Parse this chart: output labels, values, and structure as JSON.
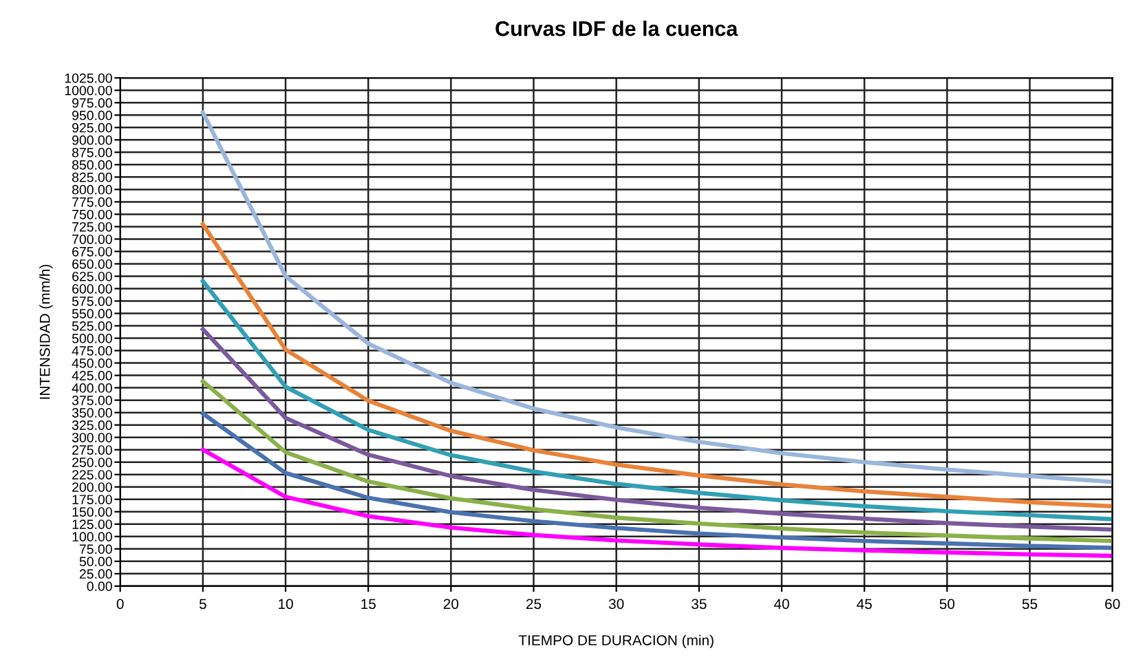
{
  "chart_data": {
    "type": "line",
    "title": "Curvas IDF de la cuenca",
    "xlabel": "TIEMPO DE DURACION (min)",
    "ylabel": "INTENSIDAD (mm/h)",
    "x": [
      5,
      10,
      15,
      20,
      25,
      30,
      35,
      40,
      45,
      50,
      55,
      60
    ],
    "series": [
      {
        "color": "#9bb5dc",
        "values": [
          955,
          625,
          489,
          410,
          358,
          320,
          291,
          268,
          250,
          235,
          222,
          210
        ]
      },
      {
        "color": "#e8833a",
        "values": [
          730,
          477,
          374,
          313,
          274,
          245,
          223,
          205,
          191,
          180,
          169,
          161
        ]
      },
      {
        "color": "#31a0b4",
        "values": [
          615,
          402,
          315,
          264,
          231,
          206,
          188,
          173,
          161,
          151,
          143,
          135
        ]
      },
      {
        "color": "#7a5a9c",
        "values": [
          518,
          339,
          265,
          222,
          194,
          174,
          158,
          146,
          136,
          127,
          120,
          114
        ]
      },
      {
        "color": "#8cb04a",
        "values": [
          413,
          270,
          211,
          177,
          155,
          138,
          126,
          116,
          108,
          102,
          96,
          91
        ]
      },
      {
        "color": "#4a72b0",
        "values": [
          348,
          228,
          178,
          149,
          131,
          117,
          106,
          98,
          91,
          86,
          81,
          77
        ]
      },
      {
        "color": "#ff00ff",
        "values": [
          275,
          180,
          141,
          118,
          103,
          92,
          84,
          77,
          72,
          68,
          64,
          61
        ]
      }
    ],
    "xlim": [
      0,
      60
    ],
    "xticks": [
      0,
      5,
      10,
      15,
      20,
      25,
      30,
      35,
      40,
      45,
      50,
      55,
      60
    ],
    "ylim": [
      0,
      1025
    ],
    "yticks": [
      {
        "value": 0,
        "label": "0.00"
      },
      {
        "value": 25,
        "label": "25.00"
      },
      {
        "value": 50,
        "label": "50.00"
      },
      {
        "value": 75,
        "label": "75.00"
      },
      {
        "value": 100,
        "label": "100.00"
      },
      {
        "value": 125,
        "label": "125.00"
      },
      {
        "value": 150,
        "label": "150.00"
      },
      {
        "value": 175,
        "label": "175.00"
      },
      {
        "value": 200,
        "label": "200.00"
      },
      {
        "value": 225,
        "label": "225.00"
      },
      {
        "value": 250,
        "label": "250.00"
      },
      {
        "value": 275,
        "label": "275.00"
      },
      {
        "value": 300,
        "label": "300.00"
      },
      {
        "value": 325,
        "label": "325.00"
      },
      {
        "value": 350,
        "label": "350.00"
      },
      {
        "value": 375,
        "label": "375.00"
      },
      {
        "value": 400,
        "label": "400.00"
      },
      {
        "value": 425,
        "label": "425.00"
      },
      {
        "value": 450,
        "label": "450.00"
      },
      {
        "value": 475,
        "label": "475.00"
      },
      {
        "value": 500,
        "label": "500.00"
      },
      {
        "value": 525,
        "label": "525.00"
      },
      {
        "value": 550,
        "label": "550.00"
      },
      {
        "value": 575,
        "label": "575.00"
      },
      {
        "value": 600,
        "label": "600.00"
      },
      {
        "value": 625,
        "label": "625.00"
      },
      {
        "value": 650,
        "label": "650.00"
      },
      {
        "value": 675,
        "label": "675.00"
      },
      {
        "value": 700,
        "label": "700.00"
      },
      {
        "value": 725,
        "label": "725.00"
      },
      {
        "value": 750,
        "label": "750.00"
      },
      {
        "value": 775,
        "label": "775.00"
      },
      {
        "value": 800,
        "label": "800.00"
      },
      {
        "value": 825,
        "label": "825.00"
      },
      {
        "value": 850,
        "label": "850.00"
      },
      {
        "value": 875,
        "label": "875.00"
      },
      {
        "value": 900,
        "label": "900.00"
      },
      {
        "value": 925,
        "label": "925.00"
      },
      {
        "value": 950,
        "label": "950.00"
      },
      {
        "value": 975,
        "label": "975.00"
      },
      {
        "value": 1000,
        "label": "1000.00"
      },
      {
        "value": 1025,
        "label": "1025.00"
      }
    ],
    "grid": true,
    "line_style": "solid",
    "marker": "none"
  }
}
